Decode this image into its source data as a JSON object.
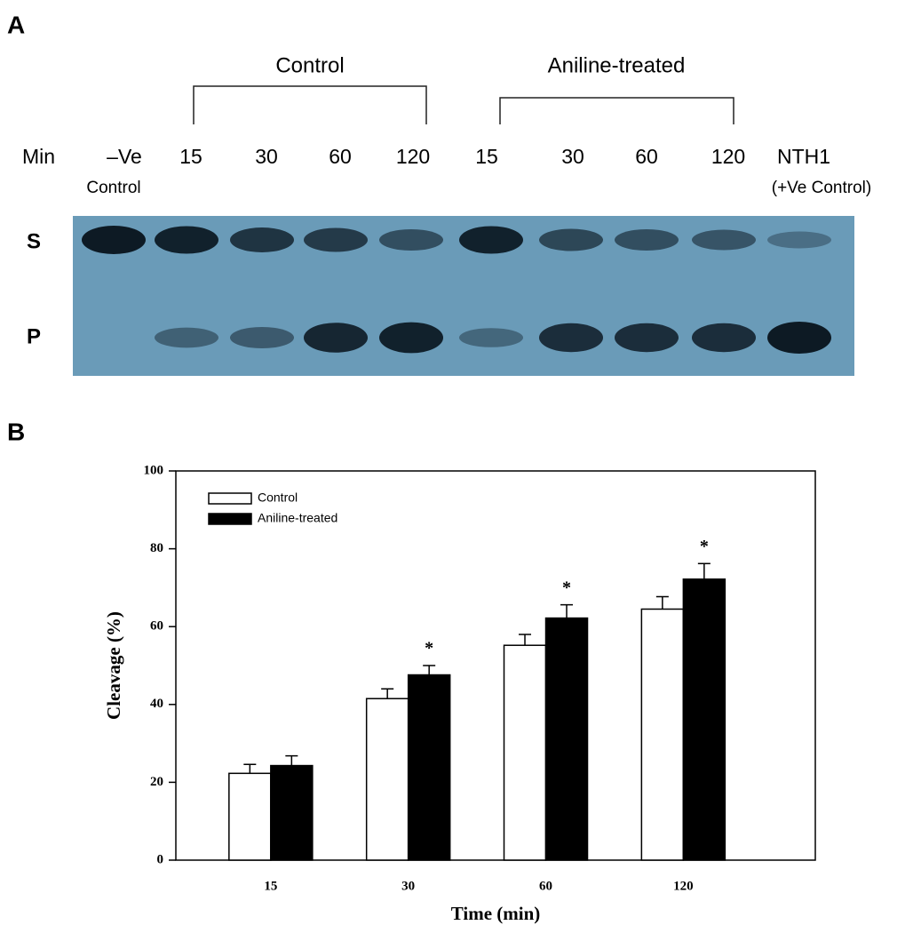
{
  "panel_a": {
    "panel_label": "A",
    "groups": [
      "Control",
      "Aniline-treated"
    ],
    "row_label": "Min",
    "lanes": [
      {
        "label": "–Ve",
        "sublabel": "Control"
      },
      {
        "label": "15"
      },
      {
        "label": "30"
      },
      {
        "label": "60"
      },
      {
        "label": "120"
      },
      {
        "label": "15"
      },
      {
        "label": "30"
      },
      {
        "label": "60"
      },
      {
        "label": "120"
      },
      {
        "label": "NTH1",
        "sublabel": "(+Ve Control)"
      }
    ],
    "bands": [
      "S",
      "P"
    ]
  },
  "chart_data": {
    "type": "bar",
    "panel_label": "B",
    "categories": [
      "15",
      "30",
      "60",
      "120"
    ],
    "series": [
      {
        "name": "Control",
        "color": "#ffffff",
        "values": [
          22.3,
          41.5,
          55.2,
          64.5
        ],
        "errors": [
          2.3,
          2.5,
          2.8,
          3.2
        ]
      },
      {
        "name": "Aniline-treated",
        "color": "#000000",
        "values": [
          24.3,
          47.6,
          62.2,
          72.2
        ],
        "errors": [
          2.5,
          2.4,
          3.4,
          4.0
        ],
        "annotations": [
          null,
          "*",
          "*",
          "*"
        ]
      }
    ],
    "xlabel": "Time (min)",
    "ylabel": "Cleavage (%)",
    "ylim": [
      0,
      100
    ],
    "yticks": [
      0,
      20,
      40,
      60,
      80,
      100
    ],
    "legend": "upper left"
  }
}
